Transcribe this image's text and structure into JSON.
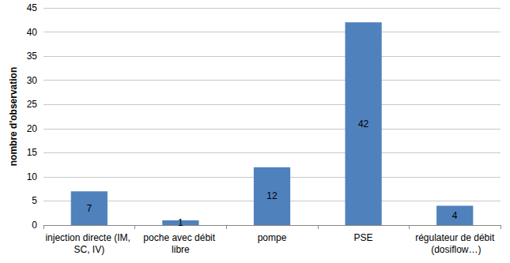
{
  "chart_data": {
    "type": "bar",
    "ylabel": "nombre d'observation",
    "categories": [
      "injection directe (IM, SC, IV)",
      "poche avec débit libre",
      "pompe",
      "PSE",
      "régulateur de débit (dosiflow…)"
    ],
    "values": [
      7,
      1,
      12,
      42,
      4
    ],
    "color": "#4f81bd",
    "ylim": [
      0,
      45
    ],
    "yticks": [
      0,
      5,
      10,
      15,
      20,
      25,
      30,
      35,
      40,
      45
    ],
    "grid": true,
    "data_labels": true
  }
}
